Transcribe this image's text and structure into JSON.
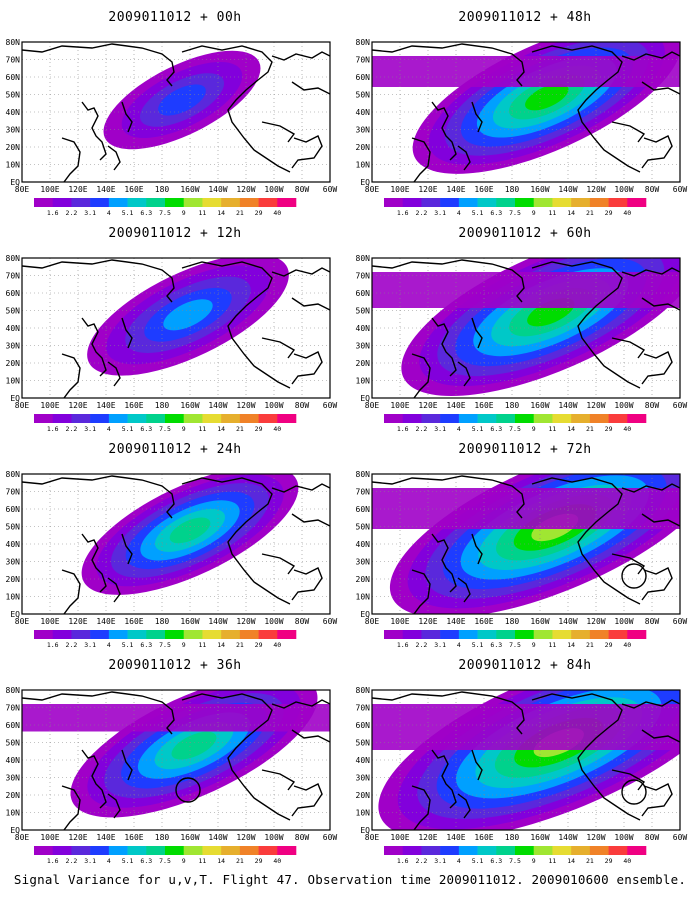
{
  "panels": [
    {
      "title": "2009011012 + 00h",
      "intensity": 0.35,
      "reach": 0.25,
      "circle": false
    },
    {
      "title": "2009011012 + 48h",
      "intensity": 0.75,
      "reach": 0.62,
      "circle": false
    },
    {
      "title": "2009011012 + 12h",
      "intensity": 0.5,
      "reach": 0.4,
      "circle": false
    },
    {
      "title": "2009011012 + 60h",
      "intensity": 0.8,
      "reach": 0.72,
      "circle": false
    },
    {
      "title": "2009011012 + 24h",
      "intensity": 0.65,
      "reach": 0.45,
      "circle": false
    },
    {
      "title": "2009011012 + 72h",
      "intensity": 0.85,
      "reach": 0.82,
      "circle": true
    },
    {
      "title": "2009011012 + 36h",
      "intensity": 0.7,
      "reach": 0.55,
      "circle": true
    },
    {
      "title": "2009011012 + 84h",
      "intensity": 0.9,
      "reach": 0.92,
      "circle": true
    }
  ],
  "lat_labels": [
    "80N",
    "70N",
    "60N",
    "50N",
    "40N",
    "30N",
    "20N",
    "10N",
    "EQ"
  ],
  "lon_labels": [
    "80E",
    "100E",
    "120E",
    "140E",
    "160E",
    "180",
    "160W",
    "140W",
    "120W",
    "100W",
    "80W",
    "60W"
  ],
  "colorbar": {
    "labels": [
      "1.6",
      "2.2",
      "3.1",
      "4",
      "5.1",
      "6.3",
      "7.5",
      "9",
      "11",
      "14",
      "21",
      "29",
      "40"
    ],
    "colors": [
      "#a000c8",
      "#8200dc",
      "#5a28dc",
      "#1e3cff",
      "#00a0ff",
      "#00c8c8",
      "#00d28c",
      "#00dc00",
      "#a0e632",
      "#e6dc32",
      "#e6af2d",
      "#f08228",
      "#fa3c3c",
      "#f00082"
    ]
  },
  "footer": "Signal Variance for u,v,T. Flight 47. Observation time 2009011012. 2009010600 ensemble."
}
